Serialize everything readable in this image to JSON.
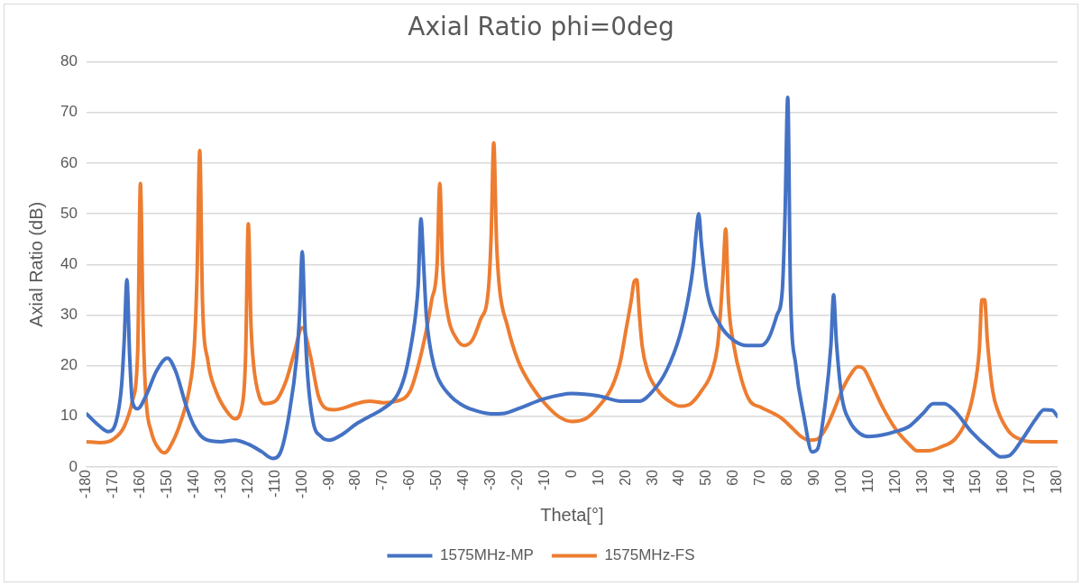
{
  "chart_data": {
    "type": "line",
    "title": "Axial Ratio phi=0deg",
    "xlabel": "Theta[°]",
    "ylabel": "Axial Ratio (dB)",
    "xlim": [
      -180,
      180
    ],
    "xticks": [
      -180,
      -170,
      -160,
      -150,
      -140,
      -130,
      -120,
      -110,
      -100,
      -90,
      -80,
      -70,
      -60,
      -50,
      -40,
      -30,
      -20,
      -10,
      0,
      10,
      20,
      30,
      40,
      50,
      60,
      70,
      80,
      90,
      100,
      110,
      120,
      130,
      140,
      150,
      160,
      170,
      180
    ],
    "ylim": [
      0,
      80
    ],
    "yticks": [
      0,
      10,
      20,
      30,
      40,
      50,
      60,
      70,
      80
    ],
    "grid": "y",
    "legend": "bottom",
    "marker": "none",
    "line_style": "solid",
    "series": [
      {
        "name": "1575MHz-MP",
        "color": "#4472c4",
        "x": [
          -180,
          -175,
          -172,
          -169,
          -167,
          -166,
          -165,
          -164,
          -163,
          -161,
          -158,
          -154,
          -150,
          -147,
          -143,
          -140,
          -136,
          -130,
          -125,
          -120,
          -115,
          -111,
          -108,
          -105,
          -102,
          -101,
          -100,
          -99,
          -98,
          -96,
          -93,
          -90,
          -85,
          -80,
          -75,
          -70,
          -65,
          -62,
          -60,
          -58,
          -57,
          -56,
          -55,
          -54,
          -52,
          -50,
          -45,
          -40,
          -35,
          -30,
          -25,
          -20,
          -10,
          0,
          10,
          18,
          25,
          30,
          35,
          40,
          43,
          45,
          46,
          47,
          48,
          50,
          55,
          60,
          65,
          70,
          73,
          76,
          78,
          79,
          80,
          81,
          83,
          86,
          89,
          91,
          94,
          96,
          97,
          98,
          100,
          103,
          107,
          110,
          115,
          120,
          125,
          130,
          134,
          138,
          142,
          148,
          155,
          159,
          162,
          167,
          172,
          175,
          178,
          180
        ],
        "values": [
          10.5,
          8,
          7,
          9,
          16,
          25,
          37,
          22,
          13,
          11.5,
          14,
          19,
          21.5,
          19,
          12,
          8,
          5.5,
          5,
          5.3,
          4.5,
          3,
          1.7,
          3,
          10,
          22,
          30,
          42.5,
          28,
          18,
          9,
          6,
          5.3,
          6.5,
          8.5,
          10,
          11.5,
          14,
          18,
          23,
          30,
          36,
          49,
          40,
          30,
          22,
          18,
          14,
          12,
          11,
          10.5,
          10.6,
          11.5,
          13.5,
          14.5,
          14,
          13,
          13,
          15,
          19,
          26,
          33,
          40,
          46,
          50,
          44,
          35,
          28,
          25,
          24,
          24,
          25.5,
          30,
          35,
          50,
          73,
          35,
          20,
          10,
          3,
          3.5,
          13,
          24,
          34,
          25,
          14,
          9,
          6.5,
          6,
          6.3,
          7,
          8,
          10.5,
          12.5,
          12.5,
          11,
          7,
          3.5,
          2,
          2.2,
          5.5,
          9.5,
          11.3,
          11.2,
          10
        ]
      },
      {
        "name": "1575MHz-FS",
        "color": "#ed7d31",
        "x": [
          -180,
          -175,
          -170,
          -166,
          -163,
          -161,
          -160,
          -159,
          -158,
          -156,
          -153,
          -151,
          -148,
          -145,
          -142,
          -140,
          -139,
          -138,
          -137,
          -135,
          -132,
          -128,
          -125,
          -122,
          -121,
          -120,
          -119,
          -118,
          -116,
          -114,
          -110,
          -106,
          -103,
          -100,
          -97,
          -94,
          -91,
          -88,
          -85,
          -80,
          -75,
          -70,
          -65,
          -60,
          -57,
          -54,
          -52,
          -50,
          -49,
          -48,
          -46,
          -43,
          -40,
          -37,
          -34,
          -31,
          -30,
          -29,
          -28,
          -27,
          -24,
          -20,
          -15,
          -10,
          -5,
          0,
          5,
          10,
          15,
          18,
          20,
          22,
          23,
          24,
          25,
          26,
          28,
          32,
          36,
          40,
          44,
          48,
          52,
          54,
          55,
          56,
          57,
          58,
          60,
          63,
          66,
          70,
          75,
          78,
          82,
          85,
          88,
          91,
          94,
          97,
          100,
          103,
          106,
          108,
          111,
          115,
          120,
          125,
          128,
          132,
          137,
          142,
          146,
          149,
          151,
          152,
          153,
          154,
          156,
          158,
          162,
          166,
          170,
          175,
          180
        ],
        "values": [
          5,
          4.8,
          5.5,
          8,
          13,
          23,
          56,
          28,
          14,
          7,
          3.5,
          2.8,
          5,
          9,
          15,
          24,
          38,
          62.5,
          33,
          21,
          15,
          11,
          9.5,
          13,
          22,
          48,
          28,
          20,
          14,
          12.5,
          13,
          17,
          22.5,
          27.5,
          22,
          14,
          11.5,
          11.3,
          11.6,
          12.5,
          13,
          12.7,
          13,
          15,
          20,
          27,
          33,
          40,
          56,
          40,
          30,
          25.5,
          24,
          25,
          29,
          35,
          45,
          64,
          45,
          36,
          28,
          21,
          16,
          12.5,
          10,
          9,
          9.5,
          12,
          16,
          21,
          27,
          33,
          36.5,
          37,
          30,
          24,
          19,
          15,
          13,
          12,
          12.5,
          15,
          19,
          24,
          30,
          38,
          47,
          33,
          24,
          17,
          13,
          11.8,
          10.5,
          9.5,
          7.5,
          6,
          5.3,
          5.5,
          7.5,
          11,
          15,
          18,
          19.8,
          19.5,
          16.5,
          12,
          7.5,
          4.5,
          3.2,
          3.2,
          4,
          5.5,
          9,
          15,
          23,
          33,
          33,
          25,
          15,
          11,
          7,
          5.5,
          5,
          5,
          5
        ]
      }
    ]
  }
}
